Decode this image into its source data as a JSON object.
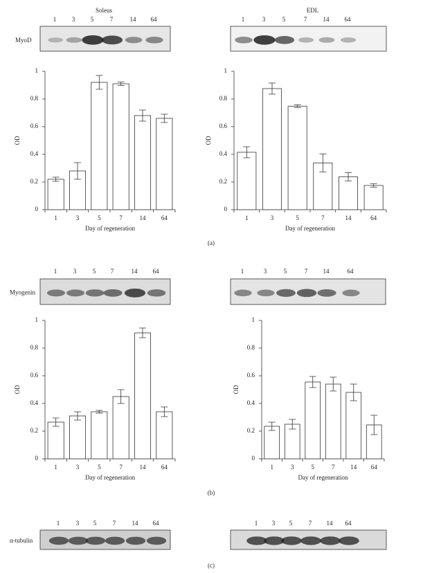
{
  "chart_data": [
    {
      "type": "bar",
      "ylabel": "OD",
      "xlabel": "Day of regeneration",
      "categories": [
        "1",
        "3",
        "5",
        "7",
        "14",
        "64"
      ],
      "values": [
        0.22,
        0.28,
        0.92,
        0.91,
        0.68,
        0.66
      ],
      "errors": [
        0.015,
        0.06,
        0.05,
        0.012,
        0.04,
        0.03
      ],
      "color": "#ffffff",
      "ylim": [
        0,
        1
      ],
      "yticks": [
        0,
        0.2,
        0.4,
        0.6,
        0.8,
        1
      ]
    },
    {
      "type": "bar",
      "ylabel": "OD",
      "xlabel": "Day of regeneration",
      "categories": [
        "1",
        "3",
        "5",
        "7",
        "14",
        "64"
      ],
      "values": [
        0.415,
        0.875,
        0.748,
        0.338,
        0.238,
        0.175
      ],
      "errors": [
        0.04,
        0.04,
        0.01,
        0.065,
        0.03,
        0.012
      ],
      "color": "#ffffff",
      "ylim": [
        0,
        1
      ],
      "yticks": [
        0,
        0.2,
        0.4,
        0.6,
        0.8,
        1
      ]
    },
    {
      "type": "bar",
      "ylabel": "OD",
      "xlabel": "Day of regeneration",
      "categories": [
        "1",
        "3",
        "5",
        "7",
        "14",
        "64"
      ],
      "values": [
        0.265,
        0.31,
        0.34,
        0.45,
        0.91,
        0.34
      ],
      "errors": [
        0.03,
        0.03,
        0.01,
        0.05,
        0.035,
        0.035
      ],
      "color": "#ffffff",
      "ylim": [
        0,
        1
      ],
      "yticks": [
        0,
        0.2,
        0.4,
        0.6,
        0.8,
        1
      ]
    },
    {
      "type": "bar",
      "ylabel": "OD",
      "xlabel": "Day of regeneration",
      "categories": [
        "1",
        "3",
        "5",
        "7",
        "14",
        "64"
      ],
      "values": [
        0.235,
        0.25,
        0.555,
        0.54,
        0.48,
        0.245
      ],
      "errors": [
        0.03,
        0.035,
        0.04,
        0.05,
        0.06,
        0.07
      ],
      "color": "#ffffff",
      "ylim": [
        0,
        1
      ],
      "yticks": [
        0,
        0.2,
        0.4,
        0.6,
        0.8,
        1
      ]
    }
  ],
  "blots": [
    {
      "title": "Soleus",
      "label": "MyoD",
      "lanes": [
        "1",
        "3",
        "5",
        "7",
        "14",
        "64"
      ]
    },
    {
      "title": "EDL",
      "lanes": [
        "1",
        "3",
        "5",
        "7",
        "14",
        "64"
      ]
    },
    {
      "label": "Myogenin",
      "lanes": [
        "1",
        "3",
        "5",
        "7",
        "14",
        "64"
      ]
    },
    {
      "lanes": [
        "1",
        "3",
        "5",
        "7",
        "14",
        "64"
      ]
    },
    {
      "label": "α-tubulin",
      "lanes": [
        "1",
        "3",
        "5",
        "7",
        "14",
        "64"
      ]
    },
    {
      "lanes": [
        "1",
        "3",
        "5",
        "7",
        "14",
        "64"
      ]
    }
  ],
  "panel_labels": [
    "(a)",
    "(b)",
    "(c)"
  ]
}
